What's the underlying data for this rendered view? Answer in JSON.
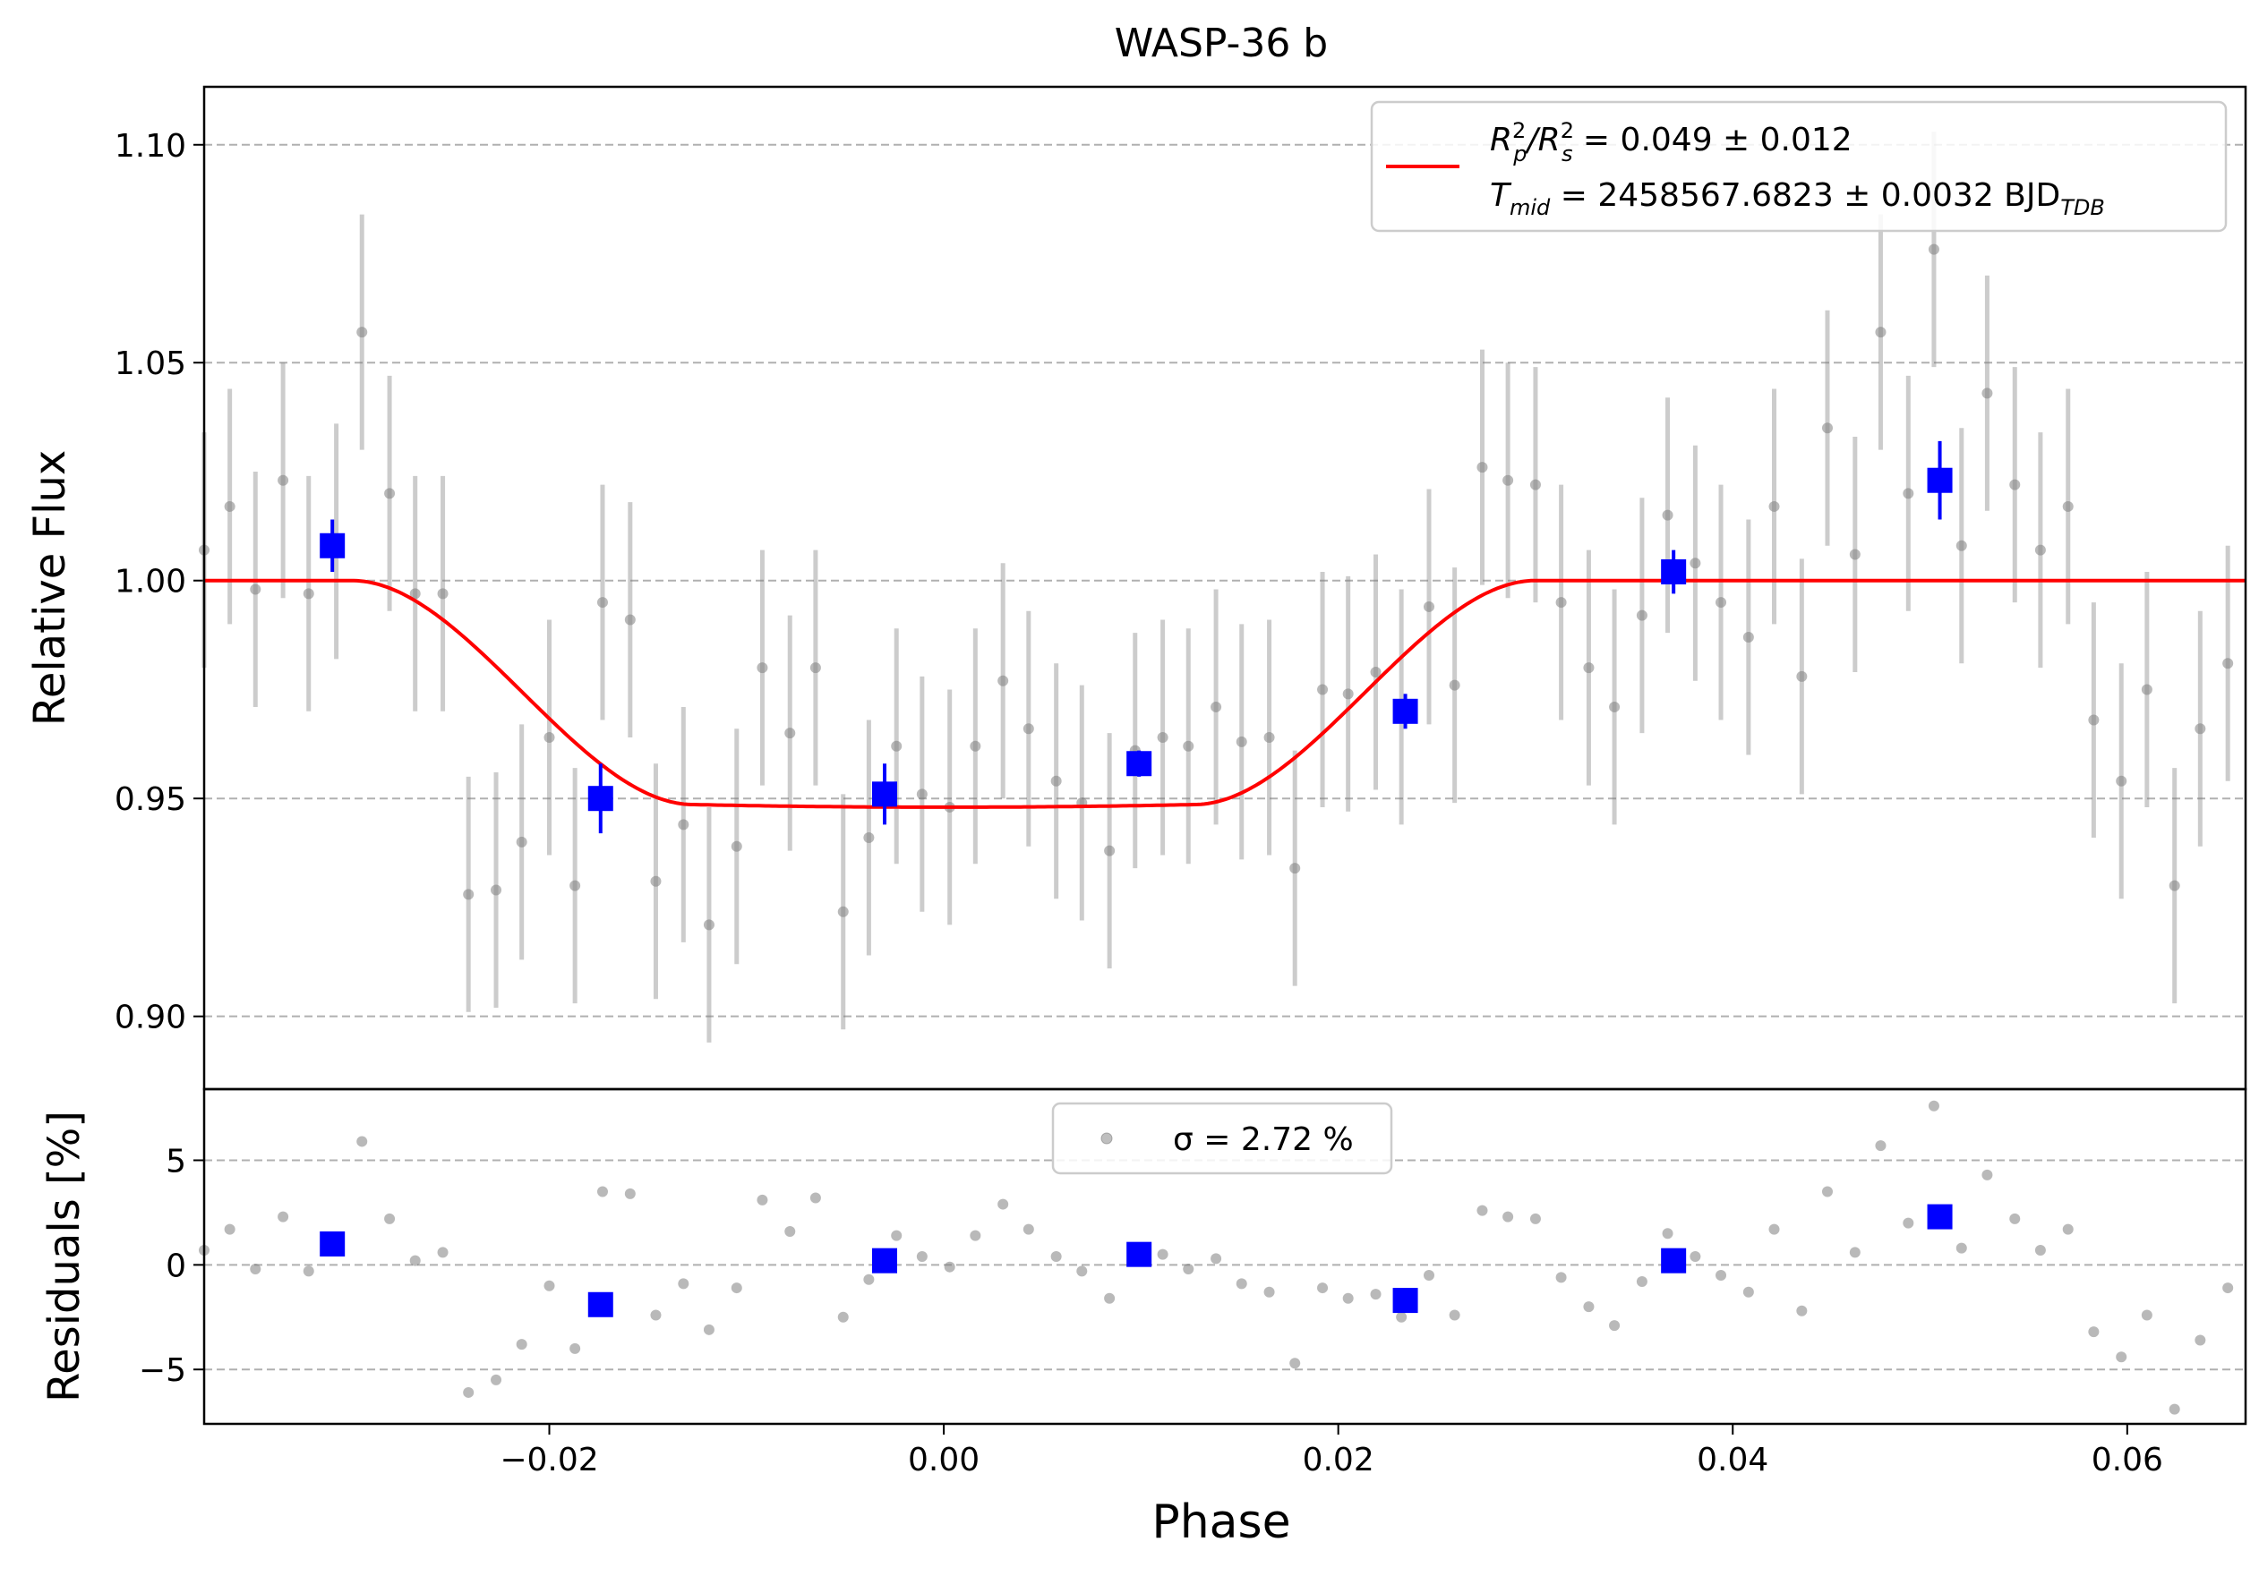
{
  "chart_data": [
    {
      "type": "scatter",
      "title": "WASP-36 b",
      "ylabel": "Relative Flux",
      "xlim": [
        -0.0375,
        0.066
      ],
      "ylim": [
        0.8833,
        1.1133
      ],
      "xticks": [
        "−0.02",
        "0.00",
        "0.02",
        "0.04",
        "0.06"
      ],
      "yticks": [
        "0.90",
        "0.95",
        "1.00",
        "1.05",
        "1.10"
      ],
      "grid": "horizontal dashed",
      "legend": {
        "position": "top-right",
        "line1": {
          "prefix": "R",
          "sub1": "p",
          "sup1": "2",
          "slash": "/R",
          "sub2": "s",
          "sup2": "2",
          "rest": " = 0.049 ± 0.012"
        },
        "line2": {
          "prefix": "T",
          "sub1": "mid",
          "rest": " = 2458567.6823 ± 0.0032 BJD",
          "sub2": "TDB"
        }
      },
      "model": {
        "depth": 0.052,
        "t_mid": 0.0,
        "t1": -0.03,
        "t2": -0.0127,
        "t3": 0.0127,
        "t4": 0.03,
        "color": "#ff0000"
      },
      "series": [
        {
          "kind": "unbinned",
          "color": "#808080",
          "x": [
            -0.0375,
            -0.0362,
            -0.0349,
            -0.0335,
            -0.0322,
            -0.0308,
            -0.0295,
            -0.0281,
            -0.0268,
            -0.0254,
            -0.0241,
            -0.0227,
            -0.0214,
            -0.02,
            -0.0187,
            -0.0173,
            -0.0159,
            -0.0146,
            -0.0132,
            -0.0119,
            -0.0105,
            -0.0092,
            -0.0078,
            -0.0065,
            -0.0051,
            -0.0038,
            -0.0024,
            -0.0011,
            0.0003,
            0.0016,
            0.003,
            0.0043,
            0.0057,
            0.007,
            0.0084,
            0.0097,
            0.0111,
            0.0124,
            0.0138,
            0.0151,
            0.0165,
            0.0178,
            0.0192,
            0.0205,
            0.0219,
            0.0232,
            0.0246,
            0.0259,
            0.0273,
            0.0286,
            0.03,
            0.0313,
            0.0327,
            0.034,
            0.0354,
            0.0367,
            0.0381,
            0.0394,
            0.0408,
            0.0421,
            0.0435,
            0.0448,
            0.0462,
            0.0475,
            0.0489,
            0.0502,
            0.0516,
            0.0529,
            0.0543,
            0.0556,
            0.057,
            0.0583,
            0.0597,
            0.061,
            0.0624,
            0.0637,
            0.0651
          ],
          "y": [
            1.007,
            1.017,
            0.998,
            1.023,
            0.997,
            1.009,
            1.057,
            1.02,
            0.997,
            0.997,
            0.928,
            0.929,
            0.94,
            0.964,
            0.93,
            0.995,
            0.991,
            0.931,
            0.944,
            0.921,
            0.939,
            0.98,
            0.965,
            0.98,
            0.924,
            0.941,
            0.962,
            0.951,
            0.948,
            0.962,
            0.977,
            0.966,
            0.954,
            0.949,
            0.938,
            0.961,
            0.964,
            0.962,
            0.971,
            0.963,
            0.964,
            0.934,
            0.975,
            0.974,
            0.979,
            0.971,
            0.994,
            0.976,
            1.026,
            1.023,
            1.022,
            0.995,
            0.98,
            0.971,
            0.992,
            1.015,
            1.004,
            0.995,
            0.987,
            1.017,
            0.978,
            1.035,
            1.006,
            1.057,
            1.02,
            1.076,
            1.008,
            1.043,
            1.022,
            1.007,
            1.017,
            0.968,
            0.954,
            0.975,
            0.93,
            0.966,
            0.981
          ],
          "yerr": 0.027,
          "residuals": [
            0.7,
            1.7,
            -0.2,
            2.3,
            -0.3,
            0.9,
            5.9,
            2.2,
            0.2,
            0.6,
            -6.1,
            -5.5,
            -3.8,
            -1.0,
            -4.0,
            3.5,
            3.4,
            -2.4,
            -0.9,
            -3.1,
            -1.1,
            3.1,
            1.6,
            3.2,
            -2.5,
            -0.7,
            1.4,
            0.4,
            -0.1,
            1.4,
            2.9,
            1.7,
            0.4,
            -0.3,
            -1.6,
            0.5,
            0.5,
            -0.2,
            0.3,
            -0.9,
            -1.3,
            -4.7,
            -1.1,
            -1.6,
            -1.4,
            -2.5,
            -0.5,
            -2.4,
            2.6,
            2.3,
            2.2,
            -0.6,
            -2.0,
            -2.9,
            -0.8,
            1.5,
            0.4,
            -0.5,
            -1.3,
            1.7,
            -2.2,
            3.5,
            0.6,
            5.7,
            2.0,
            7.6,
            0.8,
            4.3,
            2.2,
            0.7,
            1.7,
            -3.2,
            -4.4,
            -2.4,
            -6.9,
            -3.6,
            -1.1
          ]
        },
        {
          "kind": "binned",
          "color": "#0000ff",
          "x": [
            -0.031,
            -0.0174,
            -0.003,
            0.0099,
            0.0234,
            0.037,
            0.0505
          ],
          "y": [
            1.008,
            0.95,
            0.951,
            0.958,
            0.97,
            1.002,
            1.023
          ],
          "yerr": [
            0.006,
            0.008,
            0.007,
            0.003,
            0.004,
            0.005,
            0.009
          ],
          "residuals": [
            1.0,
            -1.9,
            0.2,
            0.5,
            -1.7,
            0.2,
            2.3
          ]
        }
      ]
    },
    {
      "type": "scatter",
      "xlabel": "Phase",
      "ylabel": "Residuals [%]",
      "xlim": [
        -0.0375,
        0.066
      ],
      "ylim": [
        -7.6,
        8.4
      ],
      "yticks": [
        "−5",
        "0",
        "5"
      ],
      "grid": "horizontal dashed",
      "legend": {
        "position": "top-center",
        "label": "σ = 2.72 %"
      }
    }
  ]
}
